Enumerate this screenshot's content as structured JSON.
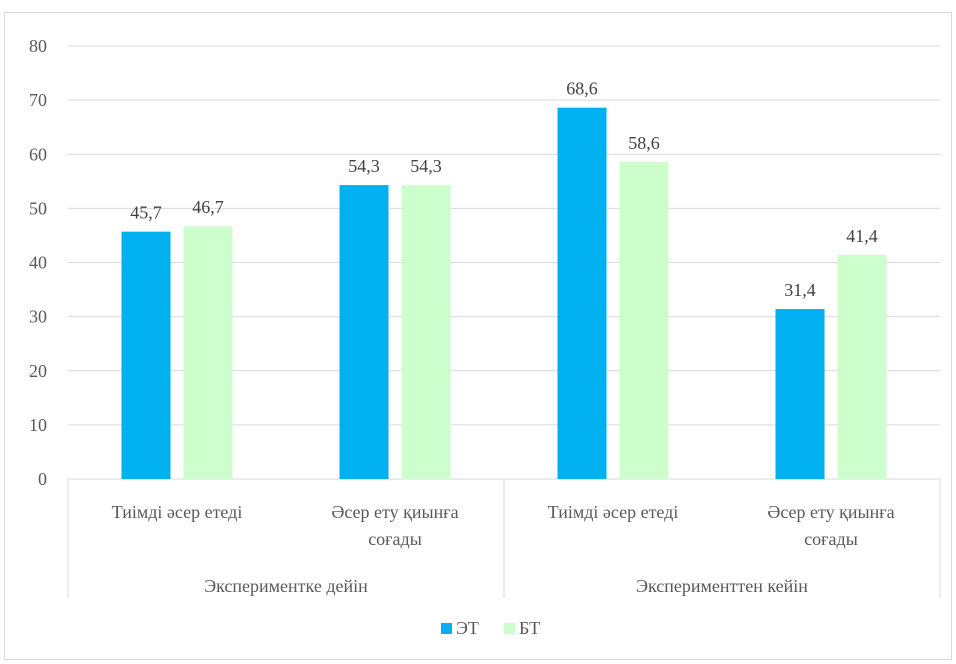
{
  "chart_data": {
    "type": "bar",
    "title": "",
    "xlabel": "",
    "ylabel": "",
    "ylim": [
      0,
      80
    ],
    "y_ticks": [
      0,
      10,
      20,
      30,
      40,
      50,
      60,
      70,
      80
    ],
    "grid": true,
    "legend_position": "bottom",
    "categories": [
      "Тиімді әсер етеді",
      "Әсер ету қиынға соғады",
      "Тиімді әсер етеді",
      "Әсер ету қиынға соғады"
    ],
    "category_lines": [
      [
        "Тиімді әсер етеді"
      ],
      [
        "Әсер ету қиынға",
        "соғады"
      ],
      [
        "Тиімді әсер етеді"
      ],
      [
        "Әсер ету қиынға",
        "соғады"
      ]
    ],
    "groups": [
      {
        "label": "Экспериментке дейін",
        "categories": [
          0,
          1
        ]
      },
      {
        "label": "Эксперименттен кейін",
        "categories": [
          2,
          3
        ]
      }
    ],
    "series": [
      {
        "name": "ЭТ",
        "color": "#00b0f0",
        "values": [
          45.7,
          54.3,
          68.6,
          31.4
        ],
        "labels": [
          "45,7",
          "54,3",
          "68,6",
          "31,4"
        ]
      },
      {
        "name": "БТ",
        "color": "#ccffcc",
        "values": [
          46.7,
          54.3,
          58.6,
          41.4
        ],
        "labels": [
          "46,7",
          "54,3",
          "58,6",
          "41,4"
        ]
      }
    ],
    "colors": {
      "gridline": "#d9d9d9",
      "axis_text": "#595959",
      "label_text": "#404040"
    }
  }
}
